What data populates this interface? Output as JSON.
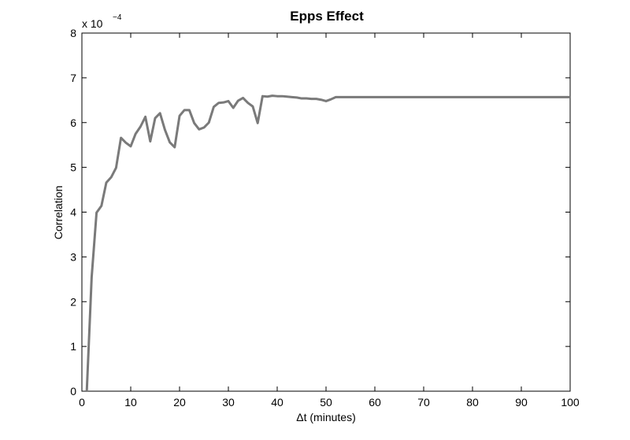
{
  "chart_data": {
    "type": "line",
    "title": "Epps Effect",
    "xlabel": "Δt (minutes)",
    "ylabel": "Correlation",
    "xlim": [
      0,
      100
    ],
    "ylim": [
      0,
      8
    ],
    "xticks": [
      0,
      10,
      20,
      30,
      40,
      50,
      60,
      70,
      80,
      90,
      100
    ],
    "yticks": [
      0,
      1,
      2,
      3,
      4,
      5,
      6,
      7,
      8
    ],
    "y_multiplier": {
      "base": "x 10",
      "exponent": "−4"
    },
    "grid": false,
    "line_color": "#7a7a7a",
    "series": [
      {
        "x": [
          1,
          2,
          3,
          4,
          5,
          6,
          7,
          8,
          9,
          10,
          11,
          12,
          13,
          14,
          15,
          16,
          17,
          18,
          19,
          20,
          21,
          22,
          23,
          24,
          25,
          26,
          27,
          28,
          29,
          30,
          31,
          32,
          33,
          34,
          35,
          36,
          37,
          38,
          39,
          40,
          41,
          42,
          43,
          44,
          45,
          46,
          47,
          48,
          49,
          50,
          51,
          52,
          100
        ],
        "values": [
          0.0,
          2.55,
          3.99,
          4.14,
          4.66,
          4.78,
          4.99,
          5.66,
          5.55,
          5.47,
          5.75,
          5.91,
          6.13,
          5.58,
          6.1,
          6.21,
          5.84,
          5.56,
          5.45,
          6.15,
          6.28,
          6.28,
          5.99,
          5.85,
          5.89,
          6.0,
          6.35,
          6.44,
          6.45,
          6.48,
          6.33,
          6.49,
          6.55,
          6.44,
          6.36,
          5.99,
          6.59,
          6.58,
          6.6,
          6.59,
          6.59,
          6.58,
          6.57,
          6.56,
          6.54,
          6.54,
          6.53,
          6.53,
          6.51,
          6.48,
          6.52,
          6.57,
          6.57
        ]
      }
    ]
  }
}
